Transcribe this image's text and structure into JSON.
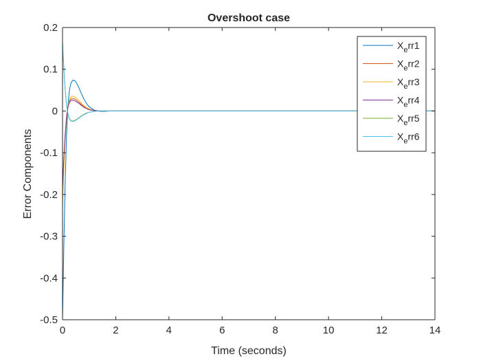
{
  "chart_data": {
    "type": "line",
    "title": "Overshoot case",
    "xlabel": "Time (seconds)",
    "ylabel": "Error Components",
    "xlim": [
      0,
      14
    ],
    "ylim": [
      -0.5,
      0.2
    ],
    "xticks": [
      0,
      2,
      4,
      6,
      8,
      10,
      12,
      14
    ],
    "xtick_labels": [
      "0",
      "2",
      "4",
      "6",
      "8",
      "10",
      "12",
      "14"
    ],
    "yticks": [
      0.2,
      0.1,
      0,
      -0.1,
      -0.2,
      -0.3,
      -0.4,
      -0.5
    ],
    "ytick_labels": [
      "0.2",
      "0.1",
      "0",
      "-0.1",
      "-0.2",
      "-0.3",
      "-0.4",
      "-0.5"
    ],
    "grid": false,
    "legend_position": "top-right",
    "series": [
      {
        "name_main": "X",
        "name_sub": "e",
        "name_rest": "rr1",
        "color": "#0072BD",
        "x": [
          0,
          0.05,
          0.1,
          0.15,
          0.2,
          0.25,
          0.3,
          0.35,
          0.4,
          0.45,
          0.5,
          0.6,
          0.7,
          0.8,
          0.9,
          1.0,
          1.2,
          1.4,
          1.6,
          1.8,
          2.0,
          2.5,
          14
        ],
        "y": [
          -0.5,
          -0.32,
          -0.17,
          -0.06,
          0.01,
          0.045,
          0.063,
          0.071,
          0.074,
          0.073,
          0.07,
          0.058,
          0.043,
          0.029,
          0.018,
          0.01,
          0.002,
          -0.001,
          -0.001,
          0,
          0,
          0,
          0
        ]
      },
      {
        "name_main": "X",
        "name_sub": "e",
        "name_rest": "rr2",
        "color": "#D95319",
        "x": [
          0,
          0.05,
          0.1,
          0.15,
          0.2,
          0.25,
          0.3,
          0.35,
          0.4,
          0.45,
          0.5,
          0.6,
          0.7,
          0.8,
          0.9,
          1.0,
          1.2,
          1.4,
          1.6,
          1.8,
          2.0,
          2.5,
          14
        ],
        "y": [
          -0.2,
          -0.12,
          -0.06,
          -0.015,
          0.01,
          0.022,
          0.028,
          0.03,
          0.03,
          0.029,
          0.027,
          0.022,
          0.016,
          0.011,
          0.007,
          0.004,
          0.001,
          0,
          0,
          0,
          0,
          0,
          0
        ]
      },
      {
        "name_main": "X",
        "name_sub": "e",
        "name_rest": "rr3",
        "color": "#EDB120",
        "x": [
          0,
          0.05,
          0.1,
          0.15,
          0.2,
          0.25,
          0.3,
          0.35,
          0.4,
          0.45,
          0.5,
          0.6,
          0.7,
          0.8,
          0.9,
          1.0,
          1.2,
          1.4,
          1.6,
          1.8,
          2.0,
          2.5,
          14
        ],
        "y": [
          -0.23,
          -0.14,
          -0.07,
          -0.02,
          0.01,
          0.025,
          0.032,
          0.035,
          0.035,
          0.034,
          0.032,
          0.026,
          0.019,
          0.013,
          0.008,
          0.005,
          0.001,
          0,
          0,
          0,
          0,
          0,
          0
        ]
      },
      {
        "name_main": "X",
        "name_sub": "e",
        "name_rest": "rr4",
        "color": "#7E2F8E",
        "x": [
          0,
          0.05,
          0.1,
          0.15,
          0.2,
          0.25,
          0.3,
          0.35,
          0.4,
          0.45,
          0.5,
          0.6,
          0.7,
          0.8,
          0.9,
          1.0,
          1.2,
          1.4,
          1.6,
          1.8,
          2.0,
          2.5,
          14
        ],
        "y": [
          -0.18,
          -0.11,
          -0.055,
          -0.015,
          0.008,
          0.019,
          0.024,
          0.026,
          0.026,
          0.025,
          0.023,
          0.019,
          0.014,
          0.009,
          0.006,
          0.003,
          0.001,
          0,
          0,
          0,
          0,
          0,
          0
        ]
      },
      {
        "name_main": "X",
        "name_sub": "e",
        "name_rest": "rr5",
        "color": "#77AC30",
        "x": [
          0,
          0.05,
          0.1,
          0.15,
          0.2,
          0.25,
          0.3,
          0.35,
          0.4,
          0.45,
          0.5,
          0.6,
          0.7,
          0.8,
          0.9,
          1.0,
          1.2,
          1.4,
          1.6,
          1.8,
          2.0,
          2.5,
          14
        ],
        "y": [
          0.16,
          0.1,
          0.05,
          0.015,
          -0.006,
          -0.017,
          -0.022,
          -0.024,
          -0.024,
          -0.023,
          -0.021,
          -0.017,
          -0.012,
          -0.008,
          -0.005,
          -0.003,
          -0.001,
          0,
          0,
          0,
          0,
          0,
          0
        ]
      },
      {
        "name_main": "X",
        "name_sub": "e",
        "name_rest": "rr6",
        "color": "#4DBEEE",
        "x": [
          0,
          0.05,
          0.1,
          0.15,
          0.2,
          0.25,
          0.3,
          0.35,
          0.4,
          0.45,
          0.5,
          0.6,
          0.7,
          0.8,
          0.9,
          1.0,
          1.2,
          1.4,
          1.6,
          1.8,
          2.0,
          2.5,
          14
        ],
        "y": [
          0.165,
          0.105,
          0.052,
          0.015,
          -0.007,
          -0.018,
          -0.023,
          -0.025,
          -0.025,
          -0.024,
          -0.022,
          -0.018,
          -0.013,
          -0.009,
          -0.006,
          -0.003,
          -0.001,
          0,
          0,
          0,
          0,
          0,
          0
        ]
      }
    ]
  }
}
